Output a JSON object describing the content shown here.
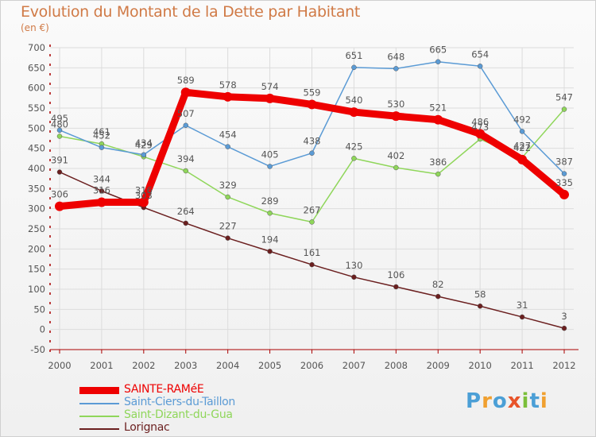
{
  "title": "Evolution du Montant de la Dette par Habitant",
  "subtitle": "(en €)",
  "logo": {
    "text": "Proxiti",
    "letter_colors": [
      "#4b9fd6",
      "#f0a030",
      "#4b9fd6",
      "#e8542a",
      "#7bbf3a",
      "#4b9fd6",
      "#f0a030"
    ]
  },
  "chart_data": {
    "type": "line",
    "title": "Evolution du Montant de la Dette par Habitant",
    "subtitle": "(en €)",
    "x": [
      "2000",
      "2001",
      "2002",
      "2003",
      "2004",
      "2005",
      "2006",
      "2007",
      "2008",
      "2009",
      "2010",
      "2011",
      "2012"
    ],
    "ylim": [
      -50,
      700
    ],
    "yticks": [
      -50,
      0,
      50,
      100,
      150,
      200,
      250,
      300,
      350,
      400,
      450,
      500,
      550,
      600,
      650,
      700
    ],
    "grid": true,
    "legend_position": "bottom-left",
    "series": [
      {
        "name": "Lorignac",
        "color": "#6b1f1f",
        "values": [
          391,
          344,
          303,
          264,
          227,
          194,
          161,
          130,
          106,
          82,
          58,
          31,
          3
        ]
      },
      {
        "name": "Saint-Dizant-du-Gua",
        "color": "#8fd65a",
        "values": [
          480,
          461,
          429,
          394,
          329,
          289,
          267,
          425,
          402,
          386,
          473,
          427,
          547
        ]
      },
      {
        "name": "Saint-Ciers-du-Taillon",
        "color": "#5b9bd5",
        "values": [
          495,
          452,
          434,
          507,
          454,
          405,
          438,
          651,
          648,
          665,
          654,
          492,
          387
        ]
      },
      {
        "name": "SAINTE-RAMéE",
        "color": "#ee0000",
        "values": [
          306,
          316,
          316,
          589,
          578,
          574,
          559,
          540,
          530,
          521,
          486,
          422,
          335
        ]
      }
    ]
  }
}
